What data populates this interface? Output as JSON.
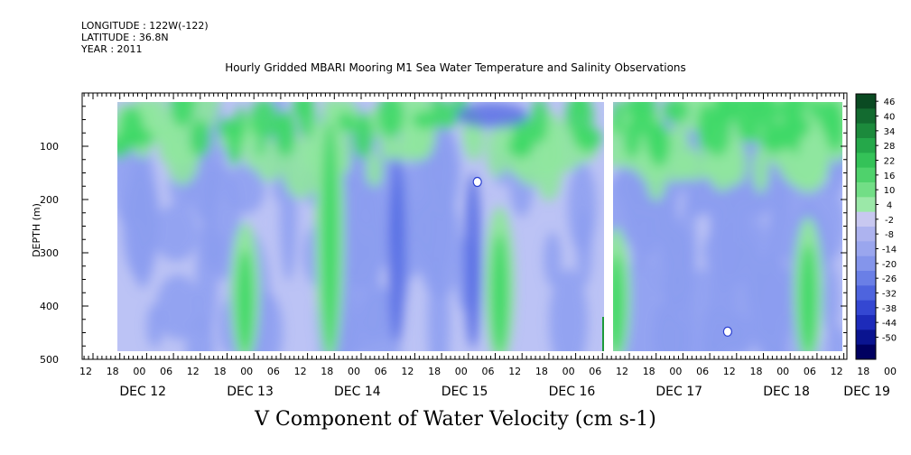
{
  "header": {
    "longitude": "LONGITUDE : 122W(-122)",
    "latitude": "LATITUDE : 36.8N",
    "year": "YEAR : 2011"
  },
  "chart_data": {
    "type": "heatmap",
    "title": "Hourly Gridded MBARI Mooring M1 Sea Water Temperature and Salinity Observations",
    "subtitle": "V Component of Water Velocity (cm s-1)",
    "ylabel": "DEPTH (m)",
    "xlabel": "",
    "x_range_hours": [
      0,
      180
    ],
    "ylim": [
      500,
      0
    ],
    "y_ticks": [
      100,
      200,
      300,
      400,
      500
    ],
    "hour_tick_labels": [
      "12",
      "18",
      "00",
      "06",
      "12",
      "18",
      "00",
      "06",
      "12",
      "18",
      "00",
      "06",
      "12",
      "18",
      "00",
      "06",
      "12",
      "18",
      "00",
      "06",
      "12",
      "18",
      "00",
      "06",
      "12",
      "18",
      "00",
      "06",
      "12",
      "18",
      "00",
      "06"
    ],
    "day_labels": [
      {
        "label": "DEC 12",
        "hour": 12
      },
      {
        "label": "DEC 13",
        "hour": 36
      },
      {
        "label": "DEC 14",
        "hour": 60
      },
      {
        "label": "DEC 15",
        "hour": 84
      },
      {
        "label": "DEC 16",
        "hour": 108
      },
      {
        "label": "DEC 17",
        "hour": 132
      },
      {
        "label": "DEC 18",
        "hour": 156
      },
      {
        "label": "DEC 19",
        "hour": 174
      }
    ],
    "data_extent_hours": [
      19,
      186
    ],
    "data_extent_depth": [
      20,
      490
    ],
    "gap_hours": [
      127,
      129
    ],
    "colorbar": {
      "levels": [
        "46",
        "40",
        "34",
        "28",
        "22",
        "16",
        "10",
        "4",
        "-2",
        "-8",
        "-14",
        "-20",
        "-26",
        "-32",
        "-38",
        "-44",
        "-50"
      ],
      "colors": [
        "#0a4a22",
        "#136b30",
        "#1c8a3c",
        "#25a84a",
        "#34c258",
        "#4fd26c",
        "#72de86",
        "#9be8a8",
        "#c8c8f0",
        "#adb3ef",
        "#9aa6ee",
        "#8495eb",
        "#6a7fe6",
        "#4e64de",
        "#3447d2",
        "#1d2bba",
        "#0a1490",
        "#000060"
      ],
      "palette": {
        "strong_green": "#3ed867",
        "light_green": "#8fe59e",
        "pale_blue": "#bcc3f5",
        "blue": "#8c9df0",
        "deep_blue": "#4f66e2"
      }
    },
    "features": [
      {
        "type": "green_band",
        "hour_center": 34,
        "depth_range": [
          260,
          490
        ]
      },
      {
        "type": "green_band",
        "hour_center": 53,
        "depth_range": [
          20,
          490
        ]
      },
      {
        "type": "green_band",
        "hour_center": 91,
        "depth_range": [
          230,
          490
        ]
      },
      {
        "type": "green_band",
        "hour_center": 117,
        "depth_range": [
          270,
          490
        ]
      },
      {
        "type": "green_band",
        "hour_center": 160,
        "depth_range": [
          250,
          490
        ]
      },
      {
        "type": "blue_core",
        "hour_center": 68,
        "depth_range": [
          120,
          470
        ]
      },
      {
        "type": "blue_core",
        "hour_center": 85,
        "depth_range": [
          150,
          480
        ]
      },
      {
        "type": "missing_value",
        "hour": 86,
        "depth": 167
      },
      {
        "type": "missing_value",
        "hour": 142,
        "depth": 448
      }
    ]
  }
}
